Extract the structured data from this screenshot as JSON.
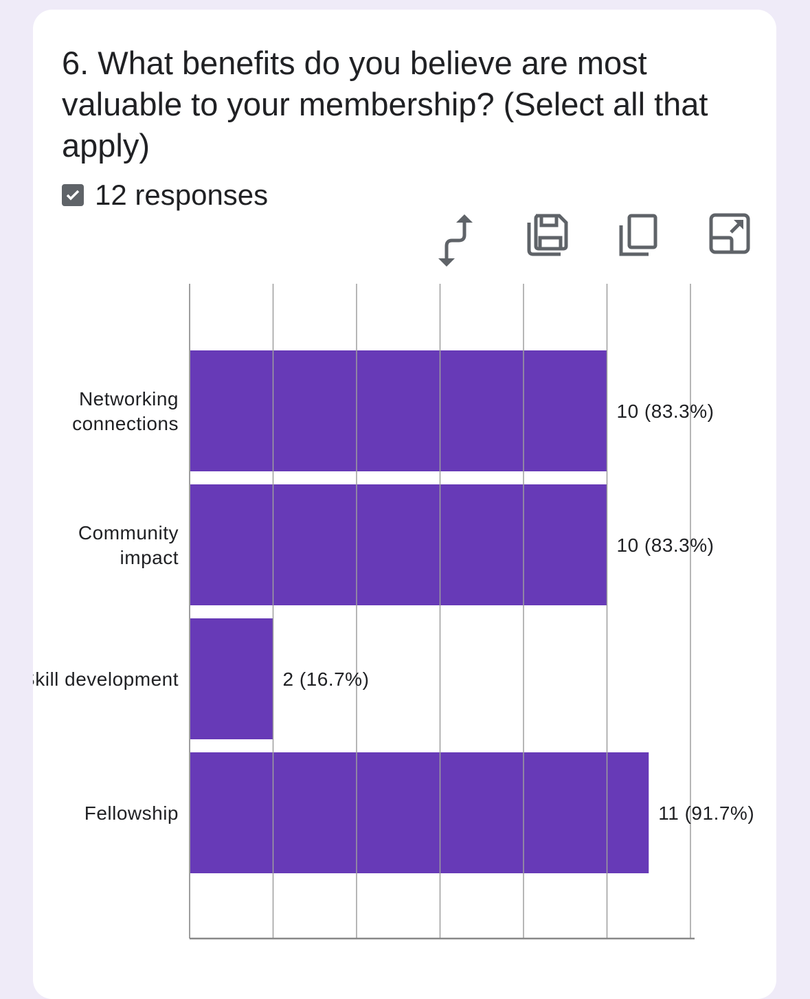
{
  "question": {
    "title": "6. What benefits do you believe are most valuable to your membership? (Select all that apply)",
    "responses": "12 responses"
  },
  "toolbar": {
    "icons": [
      "swap-axes-icon",
      "save-icon",
      "copy-icon",
      "expand-icon"
    ]
  },
  "colors": {
    "bar": "#673ab7",
    "grid": "#9e9e9e",
    "background": "#efebf8"
  },
  "chart_data": {
    "type": "bar",
    "orientation": "horizontal",
    "categories": [
      [
        "Networking",
        "connections"
      ],
      [
        "Community",
        "impact"
      ],
      [
        "Skill development"
      ],
      [
        "Fellowship"
      ]
    ],
    "values": [
      10,
      10,
      2,
      11
    ],
    "data_labels": [
      "10 (83.3%)",
      "10 (83.3%)",
      "2 (16.7%)",
      "11 (91.7%)"
    ],
    "xlim": [
      0,
      12
    ],
    "grid_step": 2,
    "grid": true
  }
}
